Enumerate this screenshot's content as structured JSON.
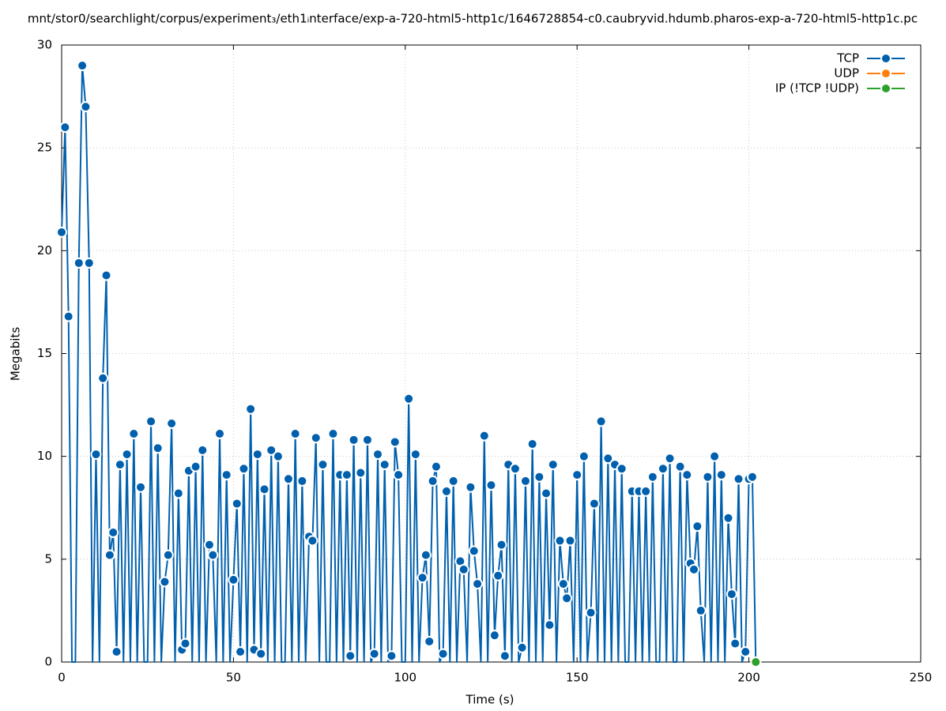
{
  "chart_data": {
    "type": "line",
    "title": "mnt/stor0/searchlight/corpus/experiment₃/eth1ᵢnterface/exp-a-720-html5-http1c/1646728854-c0.caubryvid.hdumb.pharos-exp-a-720-html5-http1c.pc",
    "xlabel": "Time (s)",
    "ylabel": "Megabits",
    "xlim": [
      0,
      250
    ],
    "xticks": [
      0,
      50,
      100,
      150,
      200,
      250
    ],
    "ylim": [
      0,
      30
    ],
    "yticks": [
      0,
      5,
      10,
      15,
      20,
      25,
      30
    ],
    "grid": true,
    "legend": "top-right",
    "series": [
      {
        "name": "TCP",
        "color": "#0060ad",
        "x": [
          0,
          1,
          2,
          3,
          4,
          5,
          6,
          7,
          8,
          9,
          10,
          11,
          12,
          13,
          14,
          15,
          16,
          17,
          18,
          19,
          20,
          21,
          22,
          23,
          24,
          25,
          26,
          27,
          28,
          29,
          30,
          31,
          32,
          33,
          34,
          35,
          36,
          37,
          38,
          39,
          40,
          41,
          42,
          43,
          44,
          45,
          46,
          47,
          48,
          49,
          50,
          51,
          52,
          53,
          54,
          55,
          56,
          57,
          58,
          59,
          60,
          61,
          62,
          63,
          64,
          65,
          66,
          67,
          68,
          69,
          70,
          71,
          72,
          73,
          74,
          75,
          76,
          77,
          78,
          79,
          80,
          81,
          82,
          83,
          84,
          85,
          86,
          87,
          88,
          89,
          90,
          91,
          92,
          93,
          94,
          95,
          96,
          97,
          98,
          99,
          100,
          101,
          102,
          103,
          104,
          105,
          106,
          107,
          108,
          109,
          110,
          111,
          112,
          113,
          114,
          115,
          116,
          117,
          118,
          119,
          120,
          121,
          122,
          123,
          124,
          125,
          126,
          127,
          128,
          129,
          130,
          131,
          132,
          133,
          134,
          135,
          136,
          137,
          138,
          139,
          140,
          141,
          142,
          143,
          144,
          145,
          146,
          147,
          148,
          149,
          150,
          151,
          152,
          153,
          154,
          155,
          156,
          157,
          158,
          159,
          160,
          161,
          162,
          163,
          164,
          165,
          166,
          167,
          168,
          169,
          170,
          171,
          172,
          173,
          174,
          175,
          176,
          177,
          178,
          179,
          180,
          181,
          182,
          183,
          184,
          185,
          186,
          187,
          188,
          189,
          190,
          191,
          192,
          193,
          194,
          195,
          196,
          197,
          198,
          199,
          200,
          201,
          202
        ],
        "values": [
          20.9,
          26.0,
          16.8,
          0,
          0,
          19.4,
          29.0,
          27.0,
          19.4,
          0,
          10.1,
          0,
          13.8,
          18.8,
          5.2,
          6.3,
          0.5,
          9.6,
          0,
          10.1,
          0,
          11.1,
          0,
          8.5,
          0,
          0,
          11.7,
          0,
          10.4,
          0,
          3.9,
          5.2,
          11.6,
          0,
          8.2,
          0.6,
          0.9,
          9.3,
          0,
          9.5,
          0,
          10.3,
          0,
          5.7,
          5.2,
          0,
          11.1,
          0,
          9.1,
          0,
          4.0,
          7.7,
          0.5,
          9.4,
          0,
          12.3,
          0.6,
          10.1,
          0.4,
          8.4,
          0,
          10.3,
          0,
          10.0,
          0,
          0,
          8.9,
          0,
          11.1,
          0,
          8.8,
          0,
          6.1,
          5.9,
          10.9,
          0,
          9.6,
          0,
          0,
          11.1,
          0,
          9.1,
          0,
          9.1,
          0.3,
          10.8,
          0,
          9.2,
          0,
          10.8,
          0,
          0.4,
          10.1,
          0,
          9.6,
          0,
          0.3,
          10.7,
          9.1,
          0,
          0,
          12.8,
          0,
          10.1,
          0,
          4.1,
          5.2,
          1.0,
          8.8,
          9.5,
          0,
          0.4,
          8.3,
          0,
          8.8,
          0,
          4.9,
          4.5,
          0,
          8.5,
          5.4,
          3.8,
          0,
          11.0,
          0,
          8.6,
          1.3,
          4.2,
          5.7,
          0.3,
          9.6,
          0,
          9.4,
          0,
          0.7,
          8.8,
          0,
          10.6,
          0,
          9.0,
          0,
          8.2,
          1.8,
          9.6,
          0,
          5.9,
          3.8,
          3.1,
          5.9,
          0,
          9.1,
          0,
          10.0,
          0,
          2.4,
          7.7,
          0,
          11.7,
          0,
          9.9,
          0,
          9.6,
          0,
          9.4,
          0,
          0,
          8.3,
          0,
          8.3,
          0,
          8.3,
          0,
          9.0,
          0,
          0,
          9.4,
          0,
          9.9,
          0,
          0,
          9.5,
          0,
          9.1,
          4.8,
          4.5,
          6.6,
          2.5,
          0,
          9.0,
          0,
          10.0,
          0,
          9.1,
          0,
          7.0,
          3.3,
          0.9,
          8.9,
          0,
          0.5,
          8.9,
          9.0,
          0
        ]
      },
      {
        "name": "UDP",
        "color": "#ff7f0e",
        "x": [],
        "values": []
      },
      {
        "name": "IP (!TCP  !UDP)",
        "color": "#2ca02c",
        "x": [
          202
        ],
        "values": [
          0
        ]
      }
    ]
  }
}
